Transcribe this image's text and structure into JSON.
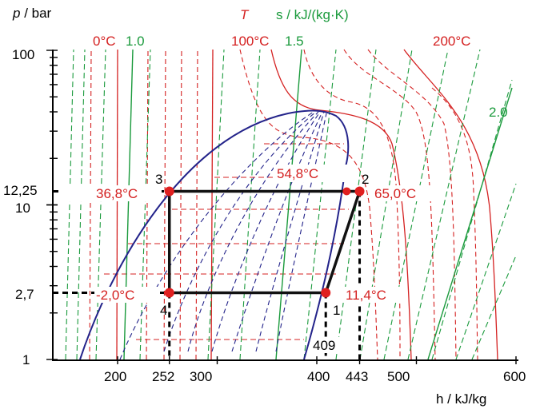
{
  "axes": {
    "y_label": "p / bar",
    "x_label": "h / kJ/kg",
    "temp_symbol": "T",
    "entropy_label": "s / kJ/(kg·K)",
    "x_tick_labels": [
      "200",
      "252",
      "300",
      "400",
      "409",
      "443",
      "500",
      "600"
    ],
    "y_tick_labels": [
      "100",
      "12,25",
      "10",
      "2,7",
      "1"
    ],
    "log_scale_y": true,
    "x_range": [
      140,
      655
    ],
    "y_range": [
      1,
      100
    ]
  },
  "isotherm_labels": [
    "0°C",
    "100°C",
    "200°C"
  ],
  "isentrope_labels": [
    "1.0",
    "1.5",
    "2.0"
  ],
  "cycle": {
    "points": [
      {
        "id": "1",
        "h": 409,
        "p": 2.7,
        "temp": "11,4°C"
      },
      {
        "id": "2",
        "h": 443,
        "p": 12.25,
        "temp": "65,0°C"
      },
      {
        "id": "3",
        "h": 252,
        "p": 12.25,
        "temp": "36,8°C"
      },
      {
        "id": "4",
        "h": 252,
        "p": 2.7,
        "temp": "-2,0°C"
      }
    ],
    "saturation_temp_high": "54,8°C"
  },
  "colors": {
    "isotherm": "#d42020",
    "isentrope": "#1a9a3c",
    "dome": "#23238a",
    "cycle": "#111111",
    "point": "#e02020"
  }
}
